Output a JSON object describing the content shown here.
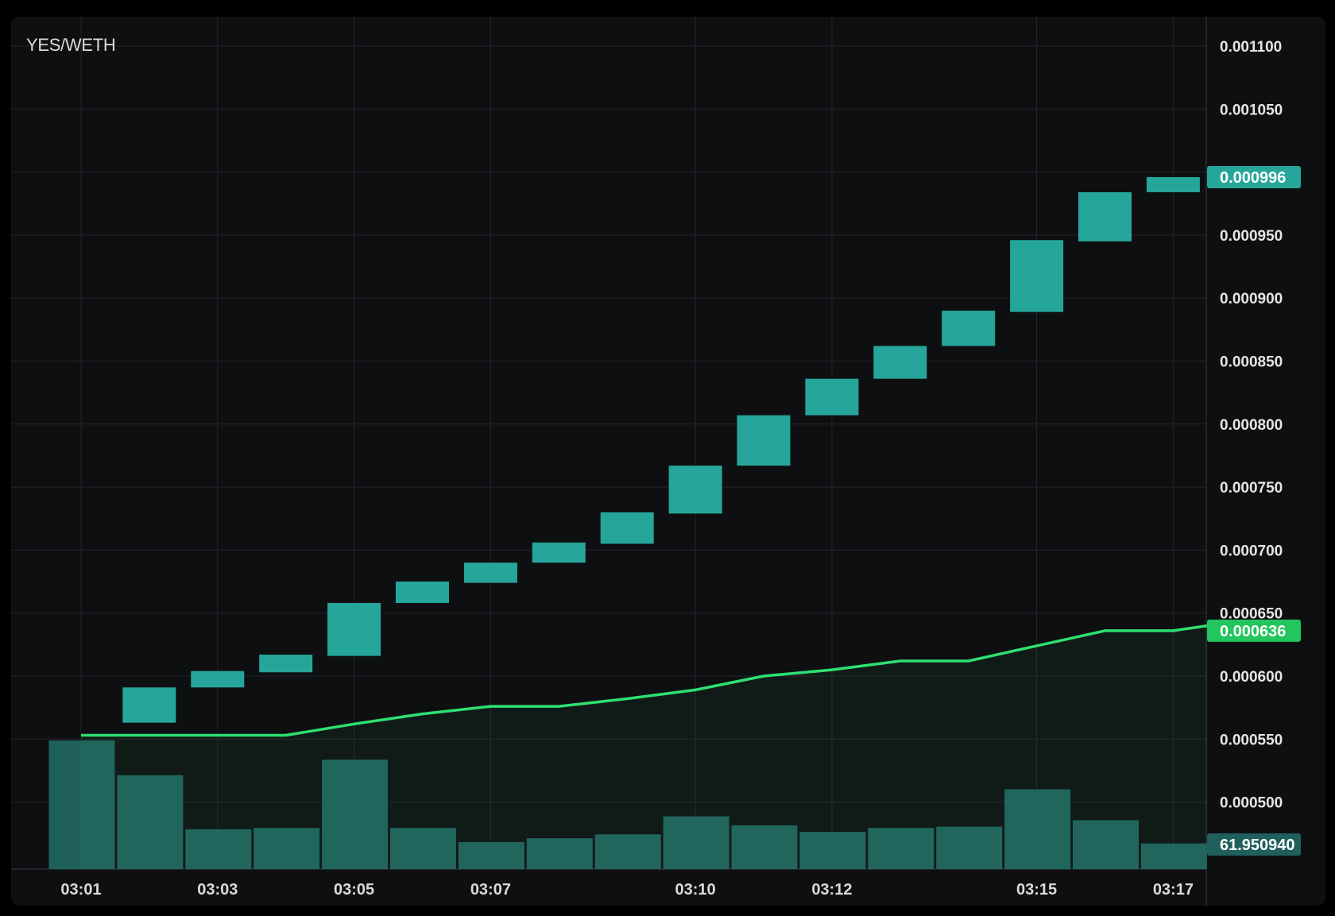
{
  "pair_title": "YES/WETH",
  "colors": {
    "background": "#0e0f11",
    "grid": "#23262b",
    "candle_up": "#26a69a",
    "volume": "#1f5f5c",
    "line": "#2ee06f",
    "price_badge": "#26a69a",
    "line_badge": "#22c55e",
    "volume_badge": "#1f5f5c"
  },
  "chart_data": {
    "type": "candlestick",
    "title": "YES/WETH",
    "price_axis_ticks": [
      "0.001100",
      "0.001050",
      "0.001000",
      "0.000950",
      "0.000900",
      "0.000850",
      "0.000800",
      "0.000750",
      "0.000700",
      "0.000650",
      "0.000600",
      "0.000550",
      "0.000500"
    ],
    "time_axis_ticks": [
      {
        "label": "03:01",
        "minute": 1,
        "bold": true
      },
      {
        "label": "03:03",
        "minute": 3,
        "bold": false
      },
      {
        "label": "03:05",
        "minute": 5,
        "bold": false
      },
      {
        "label": "03:07",
        "minute": 7,
        "bold": false
      },
      {
        "label": "03:10",
        "minute": 10,
        "bold": false
      },
      {
        "label": "03:12",
        "minute": 12,
        "bold": false
      },
      {
        "label": "03:15",
        "minute": 15,
        "bold": false
      },
      {
        "label": "03:17",
        "minute": 17,
        "bold": false
      }
    ],
    "ylim": [
      0.0005,
      0.0011
    ],
    "candles": [
      {
        "time": "03:02",
        "open": 0.000563,
        "close": 0.000591
      },
      {
        "time": "03:03",
        "open": 0.000591,
        "close": 0.000604
      },
      {
        "time": "03:04",
        "open": 0.000603,
        "close": 0.000617
      },
      {
        "time": "03:05",
        "open": 0.000616,
        "close": 0.000658
      },
      {
        "time": "03:06",
        "open": 0.000658,
        "close": 0.000675
      },
      {
        "time": "03:07",
        "open": 0.000674,
        "close": 0.00069
      },
      {
        "time": "03:08",
        "open": 0.00069,
        "close": 0.000706
      },
      {
        "time": "03:09",
        "open": 0.000705,
        "close": 0.00073
      },
      {
        "time": "03:10",
        "open": 0.000729,
        "close": 0.000767
      },
      {
        "time": "03:11",
        "open": 0.000767,
        "close": 0.000807
      },
      {
        "time": "03:12",
        "open": 0.000807,
        "close": 0.000836
      },
      {
        "time": "03:13",
        "open": 0.000836,
        "close": 0.000862
      },
      {
        "time": "03:14",
        "open": 0.000862,
        "close": 0.00089
      },
      {
        "time": "03:15",
        "open": 0.000889,
        "close": 0.000946
      },
      {
        "time": "03:16",
        "open": 0.000945,
        "close": 0.000984
      },
      {
        "time": "03:17",
        "open": 0.000984,
        "close": 0.000996
      }
    ],
    "line_series": [
      {
        "minute": 1,
        "value": 0.000553
      },
      {
        "minute": 2,
        "value": 0.000553
      },
      {
        "minute": 3,
        "value": 0.000553
      },
      {
        "minute": 4,
        "value": 0.000553
      },
      {
        "minute": 5,
        "value": 0.000562
      },
      {
        "minute": 6,
        "value": 0.00057
      },
      {
        "minute": 7,
        "value": 0.000576
      },
      {
        "minute": 8,
        "value": 0.000576
      },
      {
        "minute": 9,
        "value": 0.000582
      },
      {
        "minute": 10,
        "value": 0.000589
      },
      {
        "minute": 11,
        "value": 0.0006
      },
      {
        "minute": 12,
        "value": 0.000605
      },
      {
        "minute": 13,
        "value": 0.000612
      },
      {
        "minute": 14,
        "value": 0.000612
      },
      {
        "minute": 15,
        "value": 0.000624
      },
      {
        "minute": 16,
        "value": 0.000636
      },
      {
        "minute": 17,
        "value": 0.000636
      },
      {
        "minute": 17.5,
        "value": 0.00064
      }
    ],
    "volume": [
      {
        "time": "03:01",
        "value": 1.0
      },
      {
        "time": "03:02",
        "value": 0.73
      },
      {
        "time": "03:03",
        "value": 0.31
      },
      {
        "time": "03:04",
        "value": 0.32
      },
      {
        "time": "03:05",
        "value": 0.85
      },
      {
        "time": "03:06",
        "value": 0.32
      },
      {
        "time": "03:07",
        "value": 0.21
      },
      {
        "time": "03:08",
        "value": 0.24
      },
      {
        "time": "03:09",
        "value": 0.27
      },
      {
        "time": "03:10",
        "value": 0.41
      },
      {
        "time": "03:11",
        "value": 0.34
      },
      {
        "time": "03:12",
        "value": 0.29
      },
      {
        "time": "03:13",
        "value": 0.32
      },
      {
        "time": "03:14",
        "value": 0.33
      },
      {
        "time": "03:15",
        "value": 0.62
      },
      {
        "time": "03:16",
        "value": 0.38
      },
      {
        "time": "03:17",
        "value": 0.2
      }
    ],
    "price_badge": "0.000996",
    "line_badge": "0.000636",
    "volume_badge": "61.950940"
  }
}
